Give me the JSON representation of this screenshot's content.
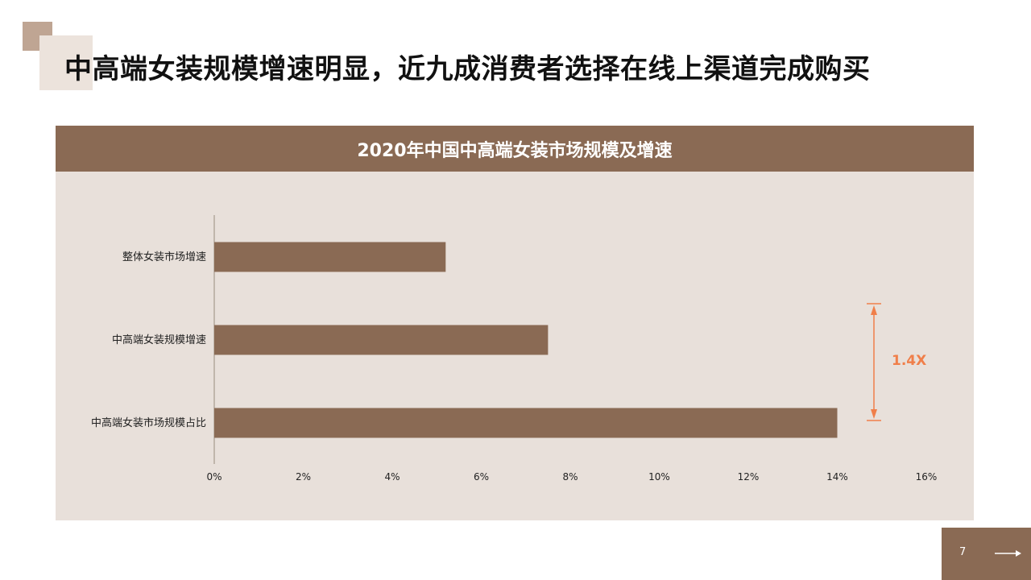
{
  "page": {
    "title": "中高端女装规模增速明显，近九成消费者选择在线上渠道完成购买",
    "page_number": "7"
  },
  "colors": {
    "accent": "#8a6a54",
    "panel": "#e8e0da",
    "annotation": "#f07f4a",
    "deco_dark": "#bfa593",
    "deco_light": "#ece3dc"
  },
  "chart_data": {
    "type": "bar",
    "orientation": "horizontal",
    "title": "2020年中国中高端女装市场规模及增速",
    "categories": [
      "整体女装市场增速",
      "中高端女装规模增速",
      "中高端女装市场规模占比"
    ],
    "values": [
      5.2,
      7.5,
      14.0
    ],
    "xlim": [
      0,
      16
    ],
    "x_ticks": [
      0,
      2,
      4,
      6,
      8,
      10,
      12,
      14,
      16
    ],
    "tick_suffix": "%",
    "grid": false,
    "annotation": {
      "text": "1.4X",
      "between_categories": [
        "中高端女装规模增速",
        "中高端女装市场规模占比"
      ]
    }
  }
}
